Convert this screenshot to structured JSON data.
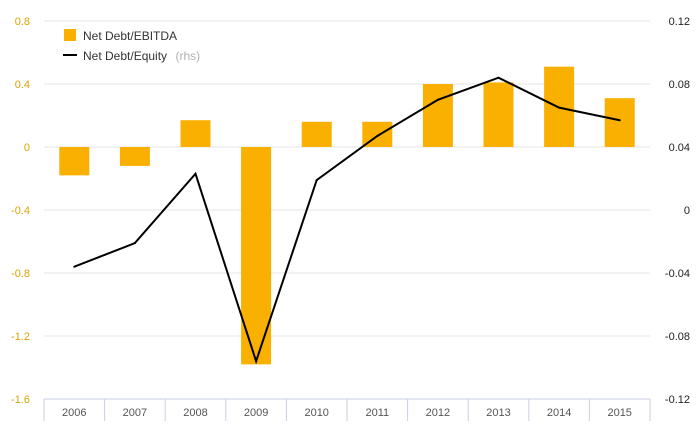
{
  "chart_data": {
    "type": "bar",
    "categories": [
      "2006",
      "2007",
      "2008",
      "2009",
      "2010",
      "2011",
      "2012",
      "2013",
      "2014",
      "2015"
    ],
    "series": [
      {
        "name": "Net Debt/EBITDA",
        "type": "bar",
        "axis": "left",
        "color": "#f9b000",
        "values": [
          -0.18,
          -0.12,
          0.17,
          -1.38,
          0.16,
          0.16,
          0.4,
          0.41,
          0.51,
          0.31
        ]
      },
      {
        "name": "Net Debt/Equity",
        "name_suffix": "(rhs)",
        "type": "line",
        "axis": "right",
        "color": "#000000",
        "values": [
          -0.036,
          -0.021,
          0.023,
          -0.096,
          0.019,
          0.047,
          0.07,
          0.084,
          0.065,
          0.057
        ]
      }
    ],
    "y_left": {
      "ylim": [
        -1.6,
        0.8
      ],
      "ticks": [
        0.8,
        0.4,
        0,
        -0.4,
        -0.8,
        -1.2,
        -1.6
      ],
      "tick_labels": [
        "0.8",
        "0.4",
        "0",
        "-0.4",
        "-0.8",
        "-1.2",
        "-1.6"
      ],
      "tick_color": "#d9a300"
    },
    "y_right": {
      "ylim": [
        -0.12,
        0.12
      ],
      "ticks": [
        0.12,
        0.08,
        0.04,
        0,
        -0.04,
        -0.08,
        -0.12
      ],
      "tick_labels": [
        "0.12",
        "0.08",
        "0.04",
        "0",
        "-0.04",
        "-0.08",
        "-0.12"
      ],
      "tick_color": "#222222"
    },
    "title": "",
    "xlabel": "",
    "ylabel": "",
    "grid": true,
    "legend_position": "top-left",
    "colors": {
      "grid": "#e6e6e6",
      "axis": "#c9cfe6"
    }
  }
}
